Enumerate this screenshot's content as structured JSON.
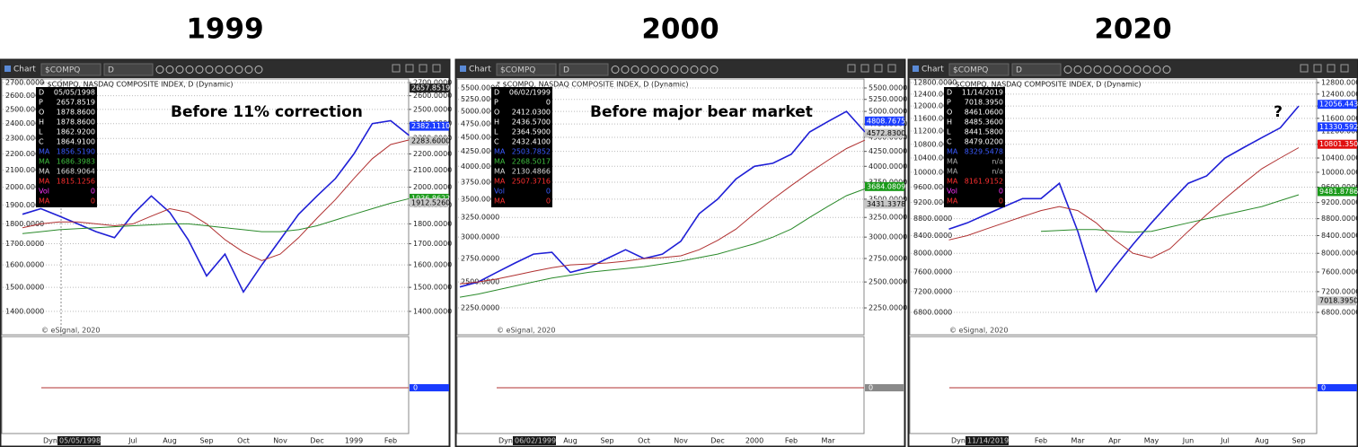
{
  "chart_data": [
    {
      "type": "line",
      "title": "1999",
      "subtitle": "* $COMPQ, NASDAQ COMPOSITE INDEX, D (Dynamic)",
      "annotation": "Before 11% correction",
      "window_label": "Chart",
      "symbol": "$COMPQ",
      "interval": "D",
      "footer": "© eSignal, 2020",
      "dyn_label": "Dyn",
      "cursor_date": "05/05/1998",
      "info": [
        {
          "label": "D",
          "value": "05/05/1998",
          "color": "#ffffff"
        },
        {
          "label": "P",
          "value": "2657.8519",
          "color": "#ffffff"
        },
        {
          "label": "O",
          "value": "1878.8600",
          "color": "#ffffff"
        },
        {
          "label": "H",
          "value": "1878.8600",
          "color": "#ffffff"
        },
        {
          "label": "L",
          "value": "1862.9200",
          "color": "#ffffff"
        },
        {
          "label": "C",
          "value": "1864.9100",
          "color": "#ffffff"
        },
        {
          "label": "MA",
          "value": "1856.5190",
          "color": "#3b5bff"
        },
        {
          "label": "MA",
          "value": "1686.3983",
          "color": "#3fbf3f"
        },
        {
          "label": "MA",
          "value": "1668.9064",
          "color": "#dddddd"
        },
        {
          "label": "MA",
          "value": "1815.1256",
          "color": "#ff3030"
        },
        {
          "label": "Vol",
          "value": "0",
          "color": "#ff33ff"
        },
        {
          "label": "MA",
          "value": "0",
          "color": "#ff3030"
        }
      ],
      "categories": [
        null,
        null,
        null,
        null,
        null,
        null,
        "Jul",
        null,
        "Aug",
        null,
        "Sep",
        null,
        "Oct",
        null,
        "Nov",
        null,
        "Dec",
        null,
        "1999",
        null,
        "Feb",
        null
      ],
      "series": [
        {
          "color": "#1f1fd6",
          "values": [
            1850,
            1880,
            1840,
            1800,
            1760,
            1730,
            1850,
            1950,
            1860,
            1720,
            1550,
            1650,
            1480,
            1600,
            1720,
            1850,
            1950,
            2050,
            2200,
            2400,
            2420,
            2320
          ]
        },
        {
          "color": "#b03030",
          "values": [
            1780,
            1800,
            1810,
            1810,
            1800,
            1790,
            1800,
            1840,
            1880,
            1860,
            1800,
            1720,
            1660,
            1620,
            1650,
            1730,
            1830,
            1930,
            2050,
            2170,
            2260,
            2290
          ]
        },
        {
          "color": "#2a8a2a",
          "values": [
            1750,
            1760,
            1770,
            1775,
            1780,
            1785,
            1790,
            1795,
            1800,
            1800,
            1790,
            1780,
            1770,
            1760,
            1760,
            1770,
            1790,
            1820,
            1850,
            1880,
            1910,
            1935
          ]
        }
      ],
      "log_scale": true,
      "grid": true,
      "ylim": [
        1309,
        2728
      ],
      "yticks": [
        {
          "value": 2700,
          "label": "2700.0000"
        },
        {
          "value": 2600,
          "label": "2600.0000"
        },
        {
          "value": 2500,
          "label": "2500.0000"
        },
        {
          "value": 2400,
          "label": "2400.0000"
        },
        {
          "value": 2300,
          "label": "2300.0000"
        },
        {
          "value": 2200,
          "label": "2200.0000"
        },
        {
          "value": 2100,
          "label": "2100.0000"
        },
        {
          "value": 2000,
          "label": "2000.0000"
        },
        {
          "value": 1900,
          "label": "1900.0000"
        },
        {
          "value": 1800,
          "label": "1800.0000"
        },
        {
          "value": 1700,
          "label": "1700.0000"
        },
        {
          "value": 1600,
          "label": "1600.0000"
        },
        {
          "value": 1500,
          "label": "1500.0000"
        },
        {
          "value": 1400,
          "label": "1400.0000"
        }
      ],
      "badges": [
        {
          "value": 2657.8519,
          "label": "2657.8519",
          "color": "#222222",
          "text_color": "#ffffff"
        },
        {
          "value": 2382.111,
          "label": "2382.1110",
          "color": "#1a3cff",
          "text_color": "#ffffff"
        },
        {
          "value": 2283.6,
          "label": "2283.6000",
          "color": "#c8c8c8",
          "text_color": "#000000"
        },
        {
          "value": 1936.8622,
          "label": "1936.8622",
          "color": "#1a9a1a",
          "text_color": "#ffffff"
        },
        {
          "value": 1912.526,
          "label": "1912.5260",
          "color": "#c8c8c8",
          "text_color": "#000000"
        }
      ],
      "lower_value": 0,
      "lower_badge_color": "#1a3cff"
    },
    {
      "type": "line",
      "title": "2000",
      "subtitle": "* $COMPQ, NASDAQ COMPOSITE INDEX, D (Dynamic)",
      "annotation": "Before major bear market",
      "window_label": "Chart",
      "symbol": "$COMPQ",
      "interval": "D",
      "footer": "© eSignal, 2020",
      "dyn_label": "Dyn",
      "cursor_date": "06/02/1999",
      "info": [
        {
          "label": "D",
          "value": "06/02/1999",
          "color": "#ffffff"
        },
        {
          "label": "P",
          "value": "0",
          "color": "#ffffff"
        },
        {
          "label": "O",
          "value": "2412.0300",
          "color": "#ffffff"
        },
        {
          "label": "H",
          "value": "2436.5700",
          "color": "#ffffff"
        },
        {
          "label": "L",
          "value": "2364.5900",
          "color": "#ffffff"
        },
        {
          "label": "C",
          "value": "2432.4100",
          "color": "#ffffff"
        },
        {
          "label": "MA",
          "value": "2503.7852",
          "color": "#3b5bff"
        },
        {
          "label": "MA",
          "value": "2268.5017",
          "color": "#3fbf3f"
        },
        {
          "label": "MA",
          "value": "2130.4866",
          "color": "#dddddd"
        },
        {
          "label": "MA",
          "value": "2507.3716",
          "color": "#ff3030"
        },
        {
          "label": "Vol",
          "value": "0",
          "color": "#3b5bff"
        },
        {
          "label": "MA",
          "value": "0",
          "color": "#ff3030"
        }
      ],
      "categories": [
        null,
        null,
        null,
        null,
        null,
        null,
        "Aug",
        null,
        "Sep",
        null,
        "Oct",
        null,
        "Nov",
        null,
        "Dec",
        null,
        "2000",
        null,
        "Feb",
        null,
        "Mar",
        null,
        null
      ],
      "series": [
        {
          "color": "#1f1fd6",
          "values": [
            2450,
            2500,
            2600,
            2700,
            2800,
            2820,
            2600,
            2650,
            2750,
            2850,
            2750,
            2800,
            2950,
            3300,
            3500,
            3800,
            4000,
            4050,
            4200,
            4600,
            4800,
            5000,
            4600
          ]
        },
        {
          "color": "#b03030",
          "values": [
            2480,
            2500,
            2530,
            2570,
            2610,
            2650,
            2680,
            2690,
            2700,
            2720,
            2750,
            2760,
            2780,
            2850,
            2960,
            3100,
            3300,
            3500,
            3700,
            3900,
            4100,
            4300,
            4450
          ]
        },
        {
          "color": "#2a8a2a",
          "values": [
            2350,
            2380,
            2420,
            2460,
            2500,
            2540,
            2570,
            2600,
            2620,
            2640,
            2660,
            2690,
            2720,
            2760,
            2800,
            2860,
            2920,
            3000,
            3100,
            3250,
            3400,
            3550,
            3650
          ]
        }
      ],
      "log_scale": true,
      "grid": true,
      "ylim": [
        2017,
        5704
      ],
      "yticks": [
        {
          "value": 5500,
          "label": "5500.0000"
        },
        {
          "value": 5250,
          "label": "5250.0000"
        },
        {
          "value": 5000,
          "label": "5000.0000"
        },
        {
          "value": 4750,
          "label": "4750.0000"
        },
        {
          "value": 4500,
          "label": "4500.0000"
        },
        {
          "value": 4250,
          "label": "4250.0000"
        },
        {
          "value": 4000,
          "label": "4000.0000"
        },
        {
          "value": 3750,
          "label": "3750.0000"
        },
        {
          "value": 3500,
          "label": "3500.0000"
        },
        {
          "value": 3250,
          "label": "3250.0000"
        },
        {
          "value": 3000,
          "label": "3000.0000"
        },
        {
          "value": 2750,
          "label": "2750.0000"
        },
        {
          "value": 2500,
          "label": "2500.0000"
        },
        {
          "value": 2250,
          "label": "2250.0000"
        }
      ],
      "badges": [
        {
          "value": 4808.7675,
          "label": "4808.7675",
          "color": "#1a3cff",
          "text_color": "#ffffff"
        },
        {
          "value": 4572.83,
          "label": "4572.8300",
          "color": "#c8c8c8",
          "text_color": "#000000"
        },
        {
          "value": 3684.0809,
          "label": "3684.0809",
          "color": "#1a9a1a",
          "text_color": "#ffffff"
        },
        {
          "value": 3431.3378,
          "label": "3431.3378",
          "color": "#c8c8c8",
          "text_color": "#000000"
        }
      ],
      "lower_value": 0,
      "lower_badge_color": "#8a8a8a"
    },
    {
      "type": "line",
      "title": "2020",
      "subtitle": "* $COMPQ, NASDAQ COMPOSITE INDEX, D (Dynamic)",
      "annotation": "?",
      "window_label": "Chart",
      "symbol": "$COMPQ",
      "interval": "D",
      "footer": "© eSignal, 2020",
      "dyn_label": "Dyn",
      "cursor_date": "11/14/2019",
      "info": [
        {
          "label": "D",
          "value": "11/14/2019",
          "color": "#ffffff"
        },
        {
          "label": "P",
          "value": "7018.3950",
          "color": "#ffffff"
        },
        {
          "label": "O",
          "value": "8461.0600",
          "color": "#ffffff"
        },
        {
          "label": "H",
          "value": "8485.3600",
          "color": "#ffffff"
        },
        {
          "label": "L",
          "value": "8441.5800",
          "color": "#ffffff"
        },
        {
          "label": "C",
          "value": "8479.0200",
          "color": "#ffffff"
        },
        {
          "label": "MA",
          "value": "8329.5478",
          "color": "#3b5bff"
        },
        {
          "label": "MA",
          "value": "n/a",
          "color": "#aaaaaa"
        },
        {
          "label": "MA",
          "value": "n/a",
          "color": "#aaaaaa"
        },
        {
          "label": "MA",
          "value": "8161.9152",
          "color": "#ff3030"
        },
        {
          "label": "Vol",
          "value": "0",
          "color": "#ff33ff"
        },
        {
          "label": "MA",
          "value": "0",
          "color": "#ff3030"
        }
      ],
      "categories": [
        null,
        null,
        null,
        null,
        null,
        "Feb",
        null,
        "Mar",
        null,
        "Apr",
        null,
        "May",
        null,
        "Jun",
        null,
        "Jul",
        null,
        "Aug",
        null,
        "Sep"
      ],
      "series": [
        {
          "color": "#1f1fd6",
          "values": [
            8550,
            8700,
            8900,
            9100,
            9300,
            9300,
            9700,
            8500,
            7200,
            7700,
            8200,
            8700,
            9200,
            9700,
            9900,
            10400,
            10700,
            11000,
            11300,
            12000
          ]
        },
        {
          "color": "#b03030",
          "values": [
            8300,
            8400,
            8550,
            8700,
            8850,
            9000,
            9100,
            9000,
            8700,
            8300,
            8000,
            7900,
            8100,
            8500,
            8900,
            9300,
            9700,
            10100,
            10400,
            10700
          ]
        },
        {
          "color": "#2a8a2a",
          "values": [
            null,
            null,
            null,
            null,
            null,
            8500,
            8520,
            8540,
            8540,
            8500,
            8480,
            8500,
            8600,
            8700,
            8800,
            8900,
            9000,
            9100,
            9250,
            9400
          ]
        }
      ],
      "log_scale": true,
      "grid": true,
      "ylim": [
        6393,
        12927
      ],
      "yticks": [
        {
          "value": 12800,
          "label": "12800.0000"
        },
        {
          "value": 12400,
          "label": "12400.0000"
        },
        {
          "value": 12000,
          "label": "12000.0000"
        },
        {
          "value": 11600,
          "label": "11600.0000"
        },
        {
          "value": 11200,
          "label": "11200.0000"
        },
        {
          "value": 10800,
          "label": "10800.0000"
        },
        {
          "value": 10400,
          "label": "10400.0000"
        },
        {
          "value": 10000,
          "label": "10000.0000"
        },
        {
          "value": 9600,
          "label": "9600.0000"
        },
        {
          "value": 9200,
          "label": "9200.0000"
        },
        {
          "value": 8800,
          "label": "8800.0000"
        },
        {
          "value": 8400,
          "label": "8400.0000"
        },
        {
          "value": 8000,
          "label": "8000.0000"
        },
        {
          "value": 7600,
          "label": "7600.0000"
        },
        {
          "value": 7200,
          "label": "7200.0000"
        },
        {
          "value": 6800,
          "label": "6800.0000"
        }
      ],
      "badges": [
        {
          "value": 12056.4432,
          "label": "12056.4432",
          "color": "#1a3cff",
          "text_color": "#ffffff"
        },
        {
          "value": 11330.592,
          "label": "11330.5920",
          "color": "#1a3cff",
          "text_color": "#ffffff"
        },
        {
          "value": 10801.35,
          "label": "10801.3500",
          "color": "#e01010",
          "text_color": "#ffffff"
        },
        {
          "value": 9481.8786,
          "label": "9481.8786",
          "color": "#1a9a1a",
          "text_color": "#ffffff"
        },
        {
          "value": 7018.395,
          "label": "7018.3950",
          "color": "#c8c8c8",
          "text_color": "#000000"
        }
      ],
      "lower_value": 0,
      "lower_badge_color": "#1a3cff"
    }
  ]
}
